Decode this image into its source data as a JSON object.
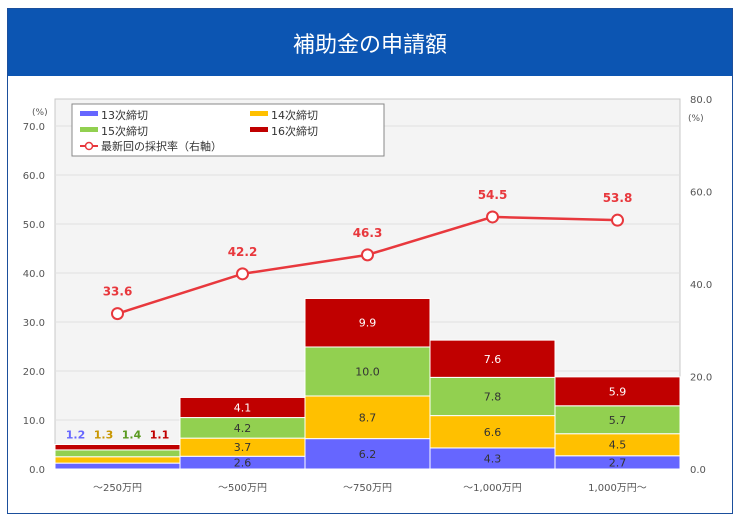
{
  "header": {
    "title": "補助金の申請額"
  },
  "chart_data": {
    "type": "bar",
    "stacked": true,
    "categories": [
      "～250万円",
      "～500万円",
      "～750万円",
      "～1,000万円",
      "1,000万円～"
    ],
    "series": [
      {
        "name": "13次締切",
        "color": "#6666ff",
        "values": [
          1.2,
          2.6,
          6.2,
          4.3,
          2.7
        ]
      },
      {
        "name": "14次締切",
        "color": "#ffc000",
        "values": [
          1.3,
          3.7,
          8.7,
          6.6,
          4.5
        ]
      },
      {
        "name": "15次締切",
        "color": "#92d050",
        "values": [
          1.4,
          4.2,
          10.0,
          7.8,
          5.7
        ]
      },
      {
        "name": "16次締切",
        "color": "#c00000",
        "values": [
          1.1,
          4.1,
          9.9,
          7.6,
          5.9
        ]
      }
    ],
    "line": {
      "name": "最新回の採択率（右軸）",
      "color": "#e8383d",
      "axis": "right",
      "values": [
        33.6,
        42.2,
        46.3,
        54.5,
        53.8
      ]
    },
    "y_left": {
      "unit": "(%)",
      "range": [
        0,
        70
      ],
      "ticks": [
        "0.0",
        "10.0",
        "20.0",
        "30.0",
        "40.0",
        "50.0",
        "60.0",
        "70.0"
      ]
    },
    "y_right": {
      "unit": "(%)",
      "range": [
        0,
        80
      ],
      "ticks": [
        "0.0",
        "20.0",
        "40.0",
        "60.0",
        "80.0"
      ]
    },
    "grid": true,
    "legend": "top-left"
  }
}
